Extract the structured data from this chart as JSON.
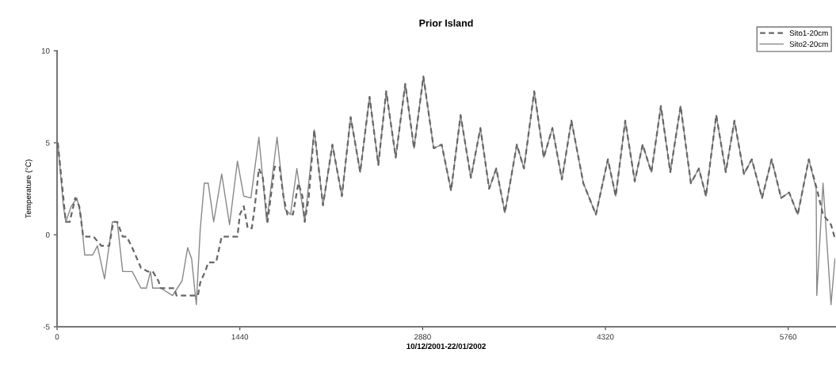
{
  "chart_data": {
    "type": "line",
    "title": "Prior Island",
    "xlabel": "10/12/2001-22/01/2002",
    "ylabel": "Temperature (°C)",
    "xlim": [
      0,
      6130
    ],
    "xticks": [
      0,
      1440,
      2880,
      4320,
      5760
    ],
    "ylim": [
      -5,
      10
    ],
    "yticks": [
      -5,
      0,
      5,
      10
    ],
    "grid": false,
    "legend": "top right",
    "series": [
      {
        "name": "Sito1-20cm",
        "color": "#666666",
        "line_style": "dashed",
        "x": [
          6,
          50,
          69,
          100,
          143,
          175,
          206,
          287,
          349,
          411,
          443,
          474,
          517,
          549,
          592,
          630,
          661,
          717,
          754,
          798,
          817,
          923,
          941,
          1110,
          1128,
          1172,
          1191,
          1253,
          1297,
          1421,
          1440,
          1471,
          1502,
          1534,
          1558,
          1590,
          1621,
          1658,
          1714,
          1752,
          1783,
          1814,
          1858,
          1901,
          1933,
          1951,
          1982,
          2026,
          2095,
          2169,
          2244,
          2313,
          2388,
          2462,
          2531,
          2593,
          2668,
          2743,
          2812,
          2886,
          2967,
          3030,
          3104,
          3179,
          3260,
          3335,
          3404,
          3460,
          3528,
          3622,
          3678,
          3759,
          3834,
          3902,
          3977,
          4052,
          4146,
          4245,
          4339,
          4401,
          4476,
          4551,
          4613,
          4682,
          4757,
          4831,
          4912,
          4993,
          5056,
          5112,
          5193,
          5268,
          5336,
          5411,
          5473,
          5554,
          5629,
          5704,
          5767,
          5835,
          5922,
          5985,
          6034,
          6097,
          6128
        ],
        "values": [
          5.0,
          2.0,
          0.7,
          0.7,
          2.0,
          1.55,
          -0.1,
          -0.1,
          -0.6,
          -0.6,
          0.7,
          0.7,
          -0.1,
          -0.1,
          -0.7,
          -1.3,
          -1.8,
          -2.0,
          -2.0,
          -2.5,
          -2.9,
          -2.9,
          -3.3,
          -3.3,
          -2.6,
          -1.9,
          -1.5,
          -1.5,
          -0.1,
          -0.1,
          1.1,
          1.55,
          0.35,
          0.35,
          1.55,
          3.6,
          3.1,
          0.7,
          3.7,
          3.7,
          2.1,
          1.1,
          1.1,
          2.8,
          2.1,
          0.7,
          2.0,
          5.7,
          1.6,
          4.9,
          2.1,
          6.4,
          3.4,
          7.5,
          3.8,
          7.8,
          4.2,
          8.2,
          4.7,
          8.6,
          4.7,
          4.9,
          2.4,
          6.5,
          3.1,
          5.8,
          2.5,
          3.6,
          1.2,
          4.9,
          3.6,
          7.8,
          4.2,
          5.8,
          3.0,
          6.2,
          2.8,
          1.1,
          4.1,
          2.1,
          6.2,
          2.9,
          4.9,
          3.4,
          7.0,
          3.4,
          7.0,
          2.8,
          3.6,
          2.1,
          6.5,
          3.4,
          6.2,
          3.3,
          4.1,
          2.0,
          4.1,
          2.0,
          2.3,
          1.1,
          4.1,
          2.5,
          1.1,
          0.55,
          -0.2
        ]
      },
      {
        "name": "Sito2-20cm",
        "color": "#888888",
        "line_style": "solid",
        "x": [
          6,
          50,
          69,
          112,
          156,
          187,
          218,
          281,
          318,
          374,
          436,
          474,
          517,
          592,
          661,
          704,
          736,
          754,
          817,
          910,
          985,
          1029,
          1060,
          1097,
          1128,
          1160,
          1191,
          1234,
          1297,
          1359,
          1421,
          1471,
          1527,
          1590,
          1652,
          1733,
          1795,
          1839,
          1889,
          1951,
          2026,
          2095,
          2169,
          2244,
          2313,
          2388,
          2462,
          2531,
          2593,
          2668,
          2743,
          2812,
          2886,
          2967,
          3030,
          3104,
          3179,
          3260,
          3335,
          3404,
          3460,
          3528,
          3622,
          3678,
          3759,
          3834,
          3902,
          3977,
          4052,
          4146,
          4245,
          4339,
          4401,
          4476,
          4551,
          4613,
          4682,
          4757,
          4831,
          4912,
          4993,
          5056,
          5112,
          5193,
          5268,
          5336,
          5411,
          5473,
          5554,
          5629,
          5704,
          5767,
          5835,
          5922,
          5980,
          5985,
          6034,
          6097,
          6128
        ],
        "values": [
          5.0,
          1.55,
          0.7,
          1.55,
          2.0,
          1.1,
          -1.1,
          -1.1,
          -0.6,
          -2.4,
          0.7,
          0.7,
          -2.0,
          -2.0,
          -2.9,
          -2.9,
          -2.0,
          -2.9,
          -2.9,
          -3.3,
          -2.5,
          -0.7,
          -1.3,
          -3.8,
          0.3,
          2.8,
          2.8,
          0.7,
          3.3,
          0.55,
          4.0,
          2.1,
          2.0,
          5.3,
          0.7,
          5.3,
          1.4,
          1.1,
          3.6,
          0.7,
          5.7,
          1.6,
          4.9,
          2.1,
          6.4,
          3.4,
          7.5,
          3.8,
          7.8,
          4.2,
          8.2,
          4.7,
          8.6,
          4.7,
          4.9,
          2.4,
          6.5,
          3.1,
          5.8,
          2.5,
          3.6,
          1.2,
          4.9,
          3.6,
          7.8,
          4.2,
          5.8,
          3.0,
          6.2,
          2.8,
          1.1,
          4.1,
          2.1,
          6.2,
          2.9,
          4.9,
          3.4,
          7.0,
          3.4,
          7.0,
          2.8,
          3.6,
          2.1,
          6.5,
          3.4,
          6.2,
          3.3,
          4.1,
          2.0,
          4.1,
          2.0,
          2.3,
          1.1,
          4.1,
          2.5,
          -3.3,
          2.8,
          -3.8,
          -1.3
        ]
      }
    ]
  }
}
